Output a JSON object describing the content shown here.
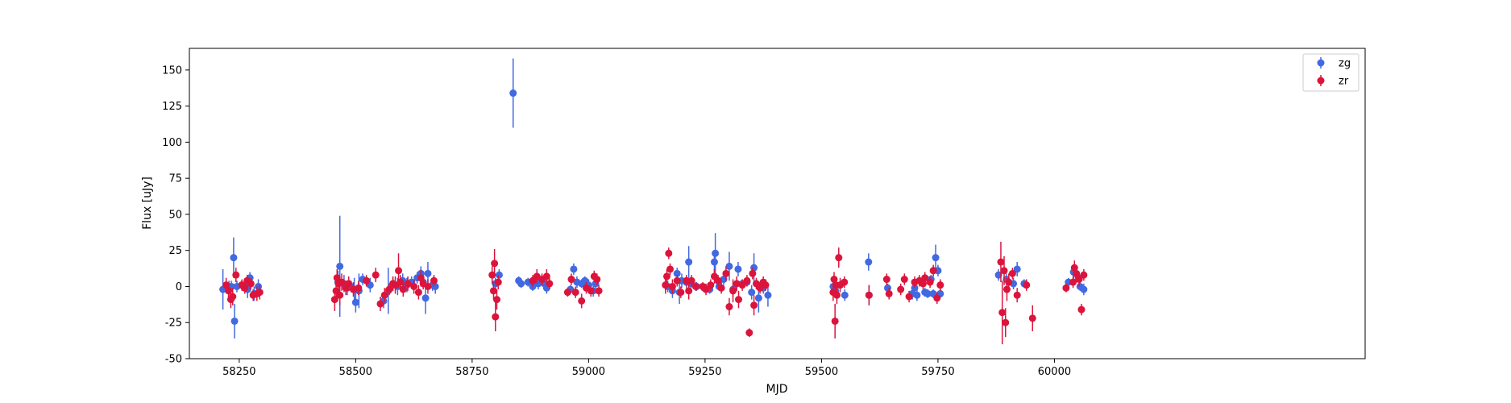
{
  "chart_data": {
    "type": "scatter",
    "title": "",
    "xlabel": "MJD",
    "ylabel": "Flux [uJy]",
    "xlim": [
      58143,
      60667
    ],
    "ylim": [
      -50,
      165
    ],
    "xticks": [
      58250,
      58500,
      58750,
      59000,
      59250,
      59500,
      59750,
      60000
    ],
    "yticks": [
      -50,
      -25,
      0,
      25,
      50,
      75,
      100,
      125,
      150
    ],
    "legend_position": "top-right",
    "series": [
      {
        "name": "zg",
        "color": "#4169e1",
        "points": [
          [
            58215,
            -2,
            14
          ],
          [
            58222,
            0,
            4
          ],
          [
            58228,
            -1,
            5
          ],
          [
            58233,
            0,
            4
          ],
          [
            58238,
            20,
            14
          ],
          [
            58240,
            -24,
            12
          ],
          [
            58245,
            0,
            4
          ],
          [
            58255,
            1,
            3
          ],
          [
            58262,
            0,
            3
          ],
          [
            58268,
            -2,
            6
          ],
          [
            58273,
            6,
            4
          ],
          [
            58282,
            -5,
            5
          ],
          [
            58291,
            0,
            5
          ],
          [
            58462,
            3,
            8
          ],
          [
            58466,
            14,
            35
          ],
          [
            58475,
            2,
            6
          ],
          [
            58482,
            -1,
            5
          ],
          [
            58490,
            0,
            4
          ],
          [
            58497,
            -2,
            8
          ],
          [
            58500,
            -11,
            7
          ],
          [
            58507,
            -3,
            12
          ],
          [
            58515,
            5,
            4
          ],
          [
            58531,
            1,
            5
          ],
          [
            58560,
            -10,
            5
          ],
          [
            58570,
            -3,
            16
          ],
          [
            58580,
            2,
            4
          ],
          [
            58590,
            0,
            6
          ],
          [
            58601,
            4,
            5
          ],
          [
            58610,
            1,
            5
          ],
          [
            58620,
            3,
            4
          ],
          [
            58632,
            6,
            4
          ],
          [
            58640,
            9,
            5
          ],
          [
            58645,
            3,
            3
          ],
          [
            58650,
            -8,
            11
          ],
          [
            58655,
            9,
            8
          ],
          [
            58665,
            1,
            4
          ],
          [
            58671,
            0,
            5
          ],
          [
            58800,
            2,
            4
          ],
          [
            58808,
            8,
            4
          ],
          [
            58838,
            134,
            24
          ],
          [
            58850,
            4,
            3
          ],
          [
            58855,
            2,
            3
          ],
          [
            58870,
            3,
            3
          ],
          [
            58880,
            0,
            3
          ],
          [
            58892,
            2,
            4
          ],
          [
            58905,
            2,
            3
          ],
          [
            58910,
            -1,
            4
          ],
          [
            58961,
            -2,
            3
          ],
          [
            58968,
            12,
            4
          ],
          [
            58975,
            3,
            4
          ],
          [
            58985,
            2,
            3
          ],
          [
            58992,
            4,
            3
          ],
          [
            59000,
            1,
            4
          ],
          [
            59010,
            -3,
            4
          ],
          [
            59015,
            2,
            3
          ],
          [
            59170,
            0,
            4
          ],
          [
            59180,
            -3,
            5
          ],
          [
            59190,
            9,
            4
          ],
          [
            59195,
            -4,
            8
          ],
          [
            59200,
            4,
            5
          ],
          [
            59210,
            3,
            4
          ],
          [
            59215,
            17,
            11
          ],
          [
            59220,
            2,
            3
          ],
          [
            59232,
            0,
            3
          ],
          [
            59248,
            -1,
            3
          ],
          [
            59260,
            -2,
            3
          ],
          [
            59270,
            17,
            7
          ],
          [
            59272,
            23,
            14
          ],
          [
            59280,
            0,
            3
          ],
          [
            59290,
            5,
            4
          ],
          [
            59302,
            14,
            10
          ],
          [
            59310,
            -2,
            5
          ],
          [
            59321,
            12,
            5
          ],
          [
            59330,
            2,
            3
          ],
          [
            59340,
            3,
            3
          ],
          [
            59350,
            -4,
            5
          ],
          [
            59355,
            13,
            10
          ],
          [
            59365,
            -8,
            10
          ],
          [
            59375,
            -1,
            4
          ],
          [
            59385,
            -6,
            8
          ],
          [
            59525,
            0,
            4
          ],
          [
            59530,
            -3,
            5
          ],
          [
            59550,
            -6,
            4
          ],
          [
            59601,
            17,
            6
          ],
          [
            59602,
            -6,
            7
          ],
          [
            59642,
            -1,
            3
          ],
          [
            59695,
            -5,
            4
          ],
          [
            59700,
            -1,
            5
          ],
          [
            59705,
            -6,
            4
          ],
          [
            59715,
            3,
            3
          ],
          [
            59722,
            -4,
            3
          ],
          [
            59728,
            -5,
            3
          ],
          [
            59735,
            5,
            3
          ],
          [
            59740,
            -5,
            3
          ],
          [
            59745,
            20,
            9
          ],
          [
            59750,
            11,
            4
          ],
          [
            59755,
            -5,
            3
          ],
          [
            59880,
            8,
            4
          ],
          [
            59897,
            5,
            4
          ],
          [
            59912,
            2,
            4
          ],
          [
            59920,
            12,
            5
          ],
          [
            59935,
            2,
            3
          ],
          [
            60030,
            3,
            3
          ],
          [
            60041,
            10,
            5
          ],
          [
            60045,
            9,
            4
          ],
          [
            60052,
            6,
            3
          ],
          [
            60055,
            0,
            3
          ],
          [
            60063,
            -2,
            4
          ]
        ]
      },
      {
        "name": "zr",
        "color": "#dc143c",
        "points": [
          [
            58222,
            1,
            5
          ],
          [
            58227,
            -3,
            5
          ],
          [
            58232,
            -9,
            6
          ],
          [
            58236,
            -7,
            6
          ],
          [
            58243,
            8,
            5
          ],
          [
            58256,
            1,
            4
          ],
          [
            58262,
            -1,
            4
          ],
          [
            58267,
            4,
            4
          ],
          [
            58275,
            2,
            4
          ],
          [
            58280,
            -6,
            4
          ],
          [
            58288,
            -5,
            5
          ],
          [
            58294,
            -4,
            5
          ],
          [
            58455,
            -9,
            8
          ],
          [
            58458,
            -3,
            7
          ],
          [
            58460,
            6,
            6
          ],
          [
            58463,
            2,
            6
          ],
          [
            58466,
            -6,
            7
          ],
          [
            58470,
            3,
            6
          ],
          [
            58479,
            -1,
            5
          ],
          [
            58485,
            2,
            5
          ],
          [
            58495,
            -2,
            5
          ],
          [
            58506,
            -1,
            5
          ],
          [
            58523,
            4,
            4
          ],
          [
            58543,
            8,
            5
          ],
          [
            58553,
            -12,
            5
          ],
          [
            58562,
            -6,
            5
          ],
          [
            58572,
            -2,
            4
          ],
          [
            58580,
            2,
            5
          ],
          [
            58585,
            1,
            6
          ],
          [
            58592,
            11,
            12
          ],
          [
            58596,
            3,
            5
          ],
          [
            58602,
            -2,
            5
          ],
          [
            58612,
            2,
            5
          ],
          [
            58625,
            0,
            5
          ],
          [
            58635,
            -4,
            5
          ],
          [
            58640,
            6,
            6
          ],
          [
            58645,
            2,
            4
          ],
          [
            58655,
            0,
            5
          ],
          [
            58668,
            4,
            4
          ],
          [
            58793,
            8,
            6
          ],
          [
            58796,
            -3,
            6
          ],
          [
            58798,
            16,
            10
          ],
          [
            58800,
            -21,
            10
          ],
          [
            58803,
            -9,
            7
          ],
          [
            58806,
            3,
            5
          ],
          [
            58880,
            4,
            4
          ],
          [
            58889,
            7,
            5
          ],
          [
            58900,
            5,
            4
          ],
          [
            58910,
            7,
            5
          ],
          [
            58916,
            2,
            4
          ],
          [
            58955,
            -4,
            3
          ],
          [
            58963,
            5,
            4
          ],
          [
            58972,
            -4,
            4
          ],
          [
            58985,
            -10,
            5
          ],
          [
            58995,
            -1,
            4
          ],
          [
            59005,
            -3,
            4
          ],
          [
            59012,
            7,
            4
          ],
          [
            59018,
            5,
            4
          ],
          [
            59022,
            -3,
            4
          ],
          [
            59165,
            1,
            6
          ],
          [
            59168,
            7,
            5
          ],
          [
            59172,
            23,
            4
          ],
          [
            59175,
            12,
            4
          ],
          [
            59180,
            0,
            5
          ],
          [
            59190,
            4,
            4
          ],
          [
            59198,
            -4,
            4
          ],
          [
            59210,
            4,
            4
          ],
          [
            59215,
            -3,
            6
          ],
          [
            59221,
            4,
            4
          ],
          [
            59230,
            0,
            3
          ],
          [
            59245,
            0,
            3
          ],
          [
            59252,
            -2,
            4
          ],
          [
            59262,
            1,
            4
          ],
          [
            59270,
            7,
            5
          ],
          [
            59278,
            4,
            4
          ],
          [
            59285,
            -1,
            4
          ],
          [
            59295,
            9,
            5
          ],
          [
            59302,
            -14,
            6
          ],
          [
            59310,
            -3,
            8
          ],
          [
            59318,
            2,
            5
          ],
          [
            59322,
            -9,
            6
          ],
          [
            59330,
            1,
            4
          ],
          [
            59340,
            4,
            4
          ],
          [
            59345,
            -32,
            3
          ],
          [
            59352,
            9,
            4
          ],
          [
            59355,
            -13,
            7
          ],
          [
            59360,
            2,
            4
          ],
          [
            59368,
            -1,
            4
          ],
          [
            59375,
            3,
            4
          ],
          [
            59380,
            1,
            4
          ],
          [
            59525,
            -4,
            6
          ],
          [
            59527,
            5,
            5
          ],
          [
            59529,
            -24,
            12
          ],
          [
            59531,
            1,
            6
          ],
          [
            59533,
            -6,
            6
          ],
          [
            59537,
            20,
            7
          ],
          [
            59540,
            1,
            5
          ],
          [
            59549,
            3,
            4
          ],
          [
            59602,
            -6,
            7
          ],
          [
            59640,
            5,
            4
          ],
          [
            59645,
            -5,
            4
          ],
          [
            59670,
            -2,
            4
          ],
          [
            59678,
            5,
            4
          ],
          [
            59688,
            -7,
            4
          ],
          [
            59700,
            3,
            4
          ],
          [
            59710,
            4,
            4
          ],
          [
            59718,
            2,
            4
          ],
          [
            59722,
            6,
            4
          ],
          [
            59733,
            3,
            4
          ],
          [
            59740,
            11,
            4
          ],
          [
            59748,
            -8,
            4
          ],
          [
            59755,
            1,
            4
          ],
          [
            59885,
            17,
            14
          ],
          [
            59888,
            -18,
            22
          ],
          [
            59892,
            11,
            10
          ],
          [
            59895,
            -25,
            10
          ],
          [
            59898,
            -2,
            8
          ],
          [
            59902,
            3,
            6
          ],
          [
            59910,
            9,
            4
          ],
          [
            59920,
            -6,
            5
          ],
          [
            59940,
            1,
            4
          ],
          [
            59953,
            -22,
            9
          ],
          [
            60025,
            -1,
            3
          ],
          [
            60040,
            3,
            4
          ],
          [
            60043,
            13,
            5
          ],
          [
            60047,
            9,
            5
          ],
          [
            60053,
            5,
            5
          ],
          [
            60058,
            -16,
            4
          ],
          [
            60063,
            8,
            4
          ]
        ]
      }
    ]
  }
}
